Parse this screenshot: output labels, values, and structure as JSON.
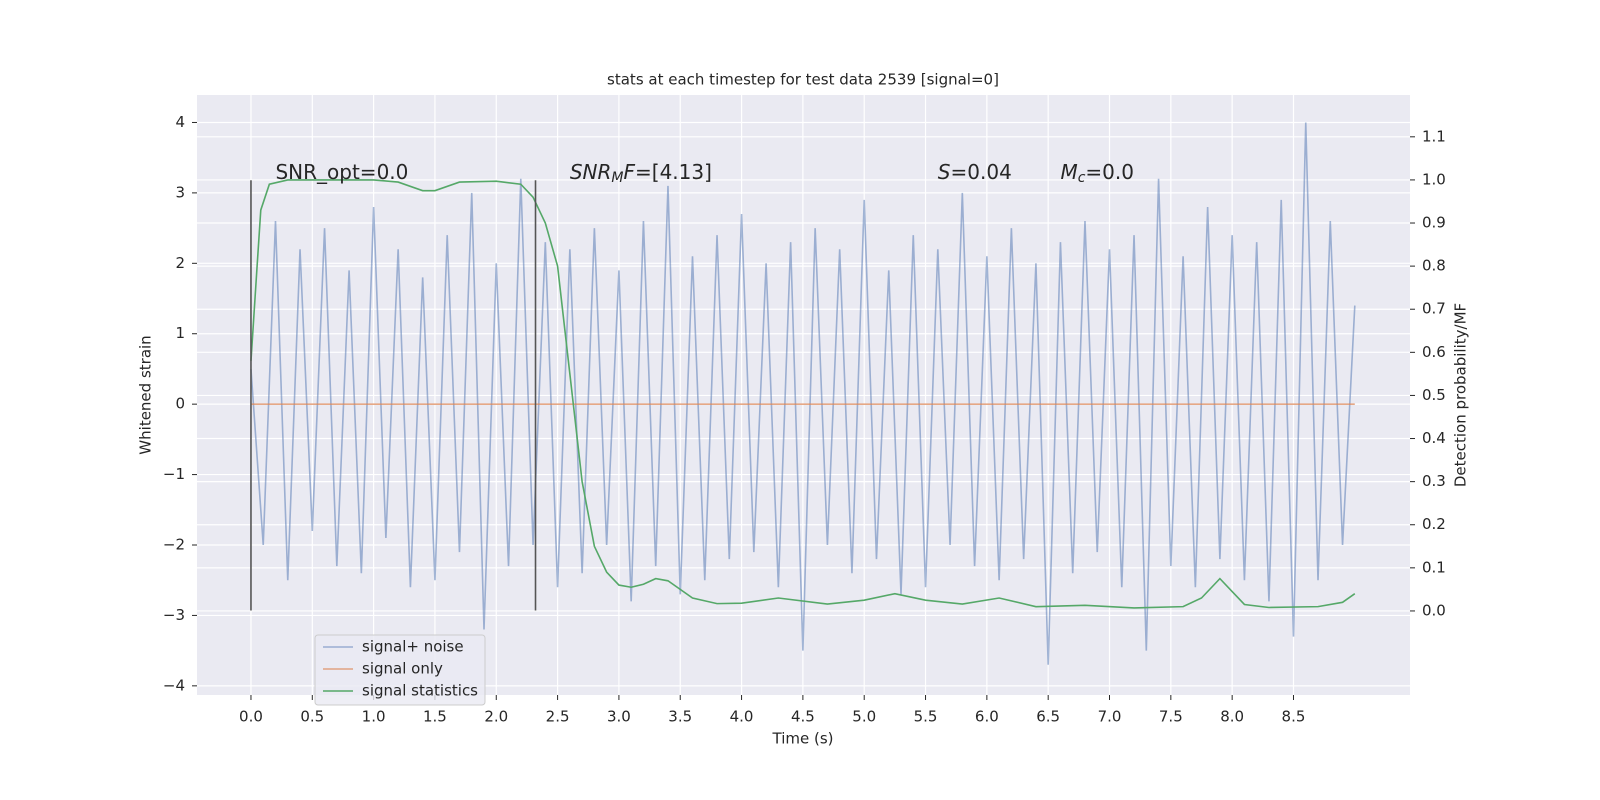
{
  "chart_data": {
    "type": "line",
    "title": "stats at each timestep for test data 2539 [signal=0]",
    "xlabel": "Time (s)",
    "ylabel": "Whitened strain",
    "y2label": "Detection probability/MF",
    "xlim": [
      -0.44,
      9.45
    ],
    "ylim": [
      -4.13,
      4.39
    ],
    "y2lim": [
      -0.195,
      1.197
    ],
    "xticks": [
      {
        "value": 0,
        "label": "0.0"
      },
      0.5,
      {
        "value": 1,
        "label": "1.0"
      },
      1.5,
      {
        "value": 2,
        "label": "2.0"
      },
      2.5,
      {
        "value": 3,
        "label": "3.0"
      },
      3.5,
      {
        "value": 4,
        "label": "4.0"
      },
      4.5,
      {
        "value": 5,
        "label": "5.0"
      },
      5.5,
      {
        "value": 6,
        "label": "6.0"
      },
      6.5,
      {
        "value": 7,
        "label": "7.0"
      },
      7.5,
      {
        "value": 8,
        "label": "8.0"
      },
      8.5
    ],
    "yticks": [
      {
        "value": -4,
        "label": "−4"
      },
      {
        "value": -3,
        "label": "−3"
      },
      {
        "value": -2,
        "label": "−2"
      },
      {
        "value": -1,
        "label": "−1"
      },
      0,
      1,
      2,
      3,
      4
    ],
    "y2ticks": [
      {
        "value": 0,
        "label": "0.0"
      },
      0.1,
      0.2,
      0.3,
      0.4,
      0.5,
      0.6,
      0.7,
      0.8,
      0.9,
      {
        "value": 1,
        "label": "1.0"
      },
      1.1
    ],
    "grid": true,
    "legend": "lower left",
    "series": [
      {
        "name": "signal+ noise",
        "color": "#4c72b0",
        "opacity": 0.5,
        "x": [
          0,
          0.1,
          0.2,
          0.3,
          0.4,
          0.5,
          0.6,
          0.7,
          0.8,
          0.9,
          1.0,
          1.1,
          1.2,
          1.3,
          1.4,
          1.5,
          1.6,
          1.7,
          1.8,
          1.9,
          2.0,
          2.1,
          2.2,
          2.3,
          2.4,
          2.5,
          2.6,
          2.7,
          2.8,
          2.9,
          3.0,
          3.1,
          3.2,
          3.3,
          3.4,
          3.5,
          3.6,
          3.7,
          3.8,
          3.9,
          4.0,
          4.1,
          4.2,
          4.3,
          4.4,
          4.5,
          4.6,
          4.7,
          4.8,
          4.9,
          5.0,
          5.1,
          5.2,
          5.3,
          5.4,
          5.5,
          5.6,
          5.7,
          5.8,
          5.9,
          6.0,
          6.1,
          6.2,
          6.3,
          6.4,
          6.5,
          6.6,
          6.7,
          6.8,
          6.9,
          7.0,
          7.1,
          7.2,
          7.3,
          7.4,
          7.5,
          7.6,
          7.7,
          7.8,
          7.9,
          8.0,
          8.1,
          8.2,
          8.3,
          8.4,
          8.5,
          8.6,
          8.7,
          8.8,
          8.9,
          9.0
        ],
        "values": [
          0.5,
          -2.0,
          2.6,
          -2.5,
          2.2,
          -1.8,
          2.5,
          -2.3,
          1.9,
          -2.4,
          2.8,
          -1.9,
          2.2,
          -2.6,
          1.8,
          -2.5,
          2.4,
          -2.1,
          3.0,
          -3.2,
          2.0,
          -2.3,
          3.2,
          -2.0,
          2.3,
          -2.6,
          2.2,
          -2.4,
          2.5,
          -2.0,
          1.9,
          -2.8,
          2.6,
          -2.3,
          3.1,
          -2.7,
          2.1,
          -2.5,
          2.4,
          -2.2,
          2.7,
          -2.1,
          2.0,
          -2.6,
          2.3,
          -3.5,
          2.5,
          -2.0,
          2.2,
          -2.4,
          2.9,
          -2.2,
          1.9,
          -2.7,
          2.4,
          -2.6,
          2.2,
          -2.0,
          3.0,
          -2.3,
          2.1,
          -2.5,
          2.5,
          -2.2,
          2.0,
          -3.7,
          2.3,
          -2.4,
          2.6,
          -2.1,
          2.2,
          -2.6,
          2.4,
          -3.5,
          3.2,
          -2.3,
          2.1,
          -2.6,
          2.8,
          -2.2,
          2.4,
          -2.5,
          2.3,
          -2.8,
          2.9,
          -3.3,
          4.0,
          -2.5,
          2.6,
          -2.0,
          1.4
        ]
      },
      {
        "name": "signal only",
        "color": "#dd8452",
        "opacity": 0.7,
        "x": [
          0,
          9.0
        ],
        "values": [
          0,
          0
        ]
      },
      {
        "name": "signal statistics",
        "color": "#55a868",
        "opacity": 1,
        "axis": "y2",
        "x": [
          0,
          0.05,
          0.08,
          0.15,
          0.3,
          1.0,
          1.2,
          1.4,
          1.5,
          1.7,
          2.0,
          2.2,
          2.3,
          2.4,
          2.5,
          2.6,
          2.7,
          2.8,
          2.9,
          3.0,
          3.1,
          3.2,
          3.3,
          3.4,
          3.6,
          3.8,
          4.0,
          4.3,
          4.7,
          5.0,
          5.25,
          5.5,
          5.8,
          6.1,
          6.4,
          6.8,
          7.2,
          7.6,
          7.75,
          7.9,
          8.0,
          8.1,
          8.3,
          8.7,
          8.9,
          9.0
        ],
        "values": [
          0.58,
          0.8,
          0.93,
          0.99,
          1.0,
          1.0,
          0.995,
          0.975,
          0.975,
          0.995,
          0.997,
          0.99,
          0.96,
          0.9,
          0.8,
          0.55,
          0.3,
          0.15,
          0.09,
          0.06,
          0.055,
          0.062,
          0.075,
          0.07,
          0.03,
          0.017,
          0.018,
          0.03,
          0.016,
          0.025,
          0.04,
          0.025,
          0.016,
          0.03,
          0.01,
          0.013,
          0.007,
          0.01,
          0.03,
          0.075,
          0.045,
          0.015,
          0.008,
          0.01,
          0.02,
          0.04
        ]
      }
    ],
    "vlines": [
      {
        "x": 0,
        "ymin": -2.93,
        "ymax": 3.18,
        "color": "#555555"
      },
      {
        "x": 2.32,
        "ymin": -2.93,
        "ymax": 3.18,
        "color": "#555555"
      }
    ],
    "annotations": [
      {
        "x": 0.2,
        "y": 3.28,
        "parts": [
          {
            "text": "SNR_opt=0.0"
          }
        ]
      },
      {
        "x": 2.6,
        "y": 3.28,
        "parts": [
          {
            "text": "SNR",
            "italic": true
          },
          {
            "text": "M",
            "italic": true,
            "sub": true
          },
          {
            "text": "F",
            "italic": true
          },
          {
            "text": "=[4.13]"
          }
        ]
      },
      {
        "x": 5.6,
        "y": 3.28,
        "parts": [
          {
            "text": "S",
            "italic": true
          },
          {
            "text": "=0.04"
          }
        ]
      },
      {
        "x": 6.6,
        "y": 3.28,
        "parts": [
          {
            "text": "M",
            "italic": true
          },
          {
            "text": "c",
            "italic": true,
            "sub": true
          },
          {
            "text": "=0.0"
          }
        ]
      }
    ]
  }
}
